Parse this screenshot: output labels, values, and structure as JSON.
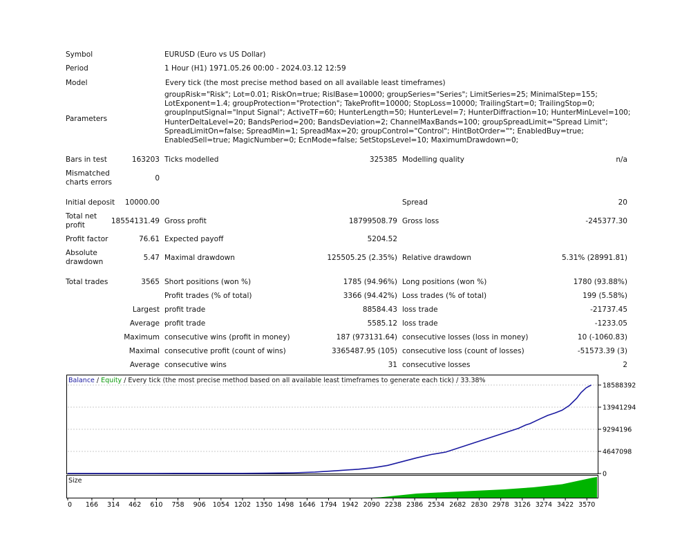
{
  "report": {
    "symbol_label": "Symbol",
    "symbol_value": "EURUSD (Euro vs US Dollar)",
    "period_label": "Period",
    "period_value": "1 Hour (H1) 1971.05.26 00:00 - 2024.03.12 12:59",
    "model_label": "Model",
    "model_value": "Every tick (the most precise method based on all available least timeframes)",
    "parameters_label": "Parameters",
    "parameters_value": "groupRisk=\"Risk\"; Lot=0.01; RiskOn=true; RislBase=10000; groupSeries=\"Series\"; LimitSeries=25; MinimalStep=155; LotExponent=1.4; groupProtection=\"Protection\"; TakeProfit=10000; StopLoss=10000; TrailingStart=0; TrailingStop=0; groupInputSignal=\"Input Signal\"; ActiveTF=60; HunterLength=50; HunterLevel=7; HunterDiffraction=10; HunterMinLevel=100; HunterDeltaLevel=20; BandsPeriod=200; BandsDeviation=2; ChannelMaxBands=100; groupSpreadLimit=\"Spread Limit\"; SpreadLimitOn=false; SpreadMin=1; SpreadMax=20; groupControl=\"Control\"; HintBotOrder=\"\"; EnabledBuy=true; EnabledSell=true; MagicNumber=0; EcnMode=false; SetStopsLevel=10; MaximumDrawdown=0;"
  },
  "stats": {
    "bars_label": "Bars in test",
    "bars_value": "163203",
    "ticks_label": "Ticks modelled",
    "ticks_value": "325385",
    "quality_label": "Modelling quality",
    "quality_value": "n/a",
    "mismatch_label": "Mismatched charts errors",
    "mismatch_value": "0",
    "deposit_label": "Initial deposit",
    "deposit_value": "10000.00",
    "spread_label": "Spread",
    "spread_value": "20",
    "netprofit_label": "Total net profit",
    "netprofit_value": "18554131.49",
    "grossprofit_label": "Gross profit",
    "grossprofit_value": "18799508.79",
    "grossloss_label": "Gross loss",
    "grossloss_value": "-245377.30",
    "pf_label": "Profit factor",
    "pf_value": "76.61",
    "payoff_label": "Expected payoff",
    "payoff_value": "5204.52",
    "absdd_label": "Absolute drawdown",
    "absdd_value": "5.47",
    "maxdd_label": "Maximal drawdown",
    "maxdd_value": "125505.25 (2.35%)",
    "reldd_label": "Relative drawdown",
    "reldd_value": "5.31% (28991.81)",
    "trades_label": "Total trades",
    "trades_value": "3565",
    "short_label": "Short positions (won %)",
    "short_value": "1785 (94.96%)",
    "long_label": "Long positions (won %)",
    "long_value": "1780 (93.88%)",
    "ptrades_label": "Profit trades (% of total)",
    "ptrades_value": "3366 (94.42%)",
    "ltrades_label": "Loss trades (% of total)",
    "ltrades_value": "199 (5.58%)",
    "largest_label": "Largest",
    "largest_profit_label": "profit trade",
    "largest_profit_value": "88584.43",
    "largest_loss_label": "loss trade",
    "largest_loss_value": "-21737.45",
    "average_label": "Average",
    "average_profit_label": "profit trade",
    "average_profit_value": "5585.12",
    "average_loss_label": "loss trade",
    "average_loss_value": "-1233.05",
    "maximum_label": "Maximum",
    "max_wins_label": "consecutive wins (profit in money)",
    "max_wins_value": "187 (973131.64)",
    "max_losses_label": "consecutive losses (loss in money)",
    "max_losses_value": "10 (-1060.83)",
    "maximal_label": "Maximal",
    "maximal_profit_label": "consecutive profit (count of wins)",
    "maximal_profit_value": "3365487.95 (105)",
    "maximal_loss_label": "consecutive loss (count of losses)",
    "maximal_loss_value": "-51573.39 (3)",
    "average2_label": "Average",
    "avg_wins_label": "consecutive wins",
    "avg_wins_value": "31",
    "avg_losses_label": "consecutive losses",
    "avg_losses_value": "2"
  },
  "chart_legend": {
    "balance": "Balance",
    "sep1": " / ",
    "equity": "Equity",
    "rest": " / Every tick (the most precise method based on all available least timeframes to generate each tick) / 33.38%",
    "size_label": "Size"
  },
  "colors": {
    "balance": "#1a1aa0",
    "equity": "#0b9a0b",
    "size_fill": "#00b400"
  },
  "chart_data": {
    "type": "line",
    "title": "",
    "xlabel": "",
    "ylabel": "",
    "x_ticks": [
      0,
      166,
      314,
      462,
      610,
      758,
      906,
      1054,
      1202,
      1350,
      1498,
      1646,
      1794,
      1942,
      2090,
      2238,
      2386,
      2534,
      2682,
      2830,
      2978,
      3126,
      3274,
      3422,
      3570
    ],
    "y_ticks": [
      18588392,
      13941294,
      9294196,
      4647098,
      0
    ],
    "xlim": [
      0,
      3640
    ],
    "ylim": [
      0,
      18588392
    ],
    "series": [
      {
        "name": "Balance",
        "x": [
          0,
          300,
          600,
          900,
          1200,
          1350,
          1550,
          1700,
          1850,
          2000,
          2100,
          2200,
          2300,
          2400,
          2500,
          2600,
          2700,
          2800,
          2900,
          3000,
          3100,
          3150,
          3180,
          3250,
          3300,
          3350,
          3400,
          3450,
          3500,
          3530,
          3565,
          3600
        ],
        "y": [
          10000,
          15000,
          20000,
          25000,
          30000,
          60000,
          150000,
          300000,
          600000,
          900000,
          1200000,
          1700000,
          2500000,
          3300000,
          4000000,
          4500000,
          5500000,
          6500000,
          7500000,
          8500000,
          9500000,
          10200000,
          10500000,
          11500000,
          12200000,
          12700000,
          13300000,
          14300000,
          15800000,
          17000000,
          18000000,
          18588392
        ]
      }
    ],
    "size_series": {
      "name": "Size",
      "x": [
        0,
        2090,
        2150,
        2400,
        2700,
        3000,
        3200,
        3400,
        3500,
        3600,
        3640
      ],
      "y": [
        0,
        0,
        0.02,
        0.2,
        0.3,
        0.4,
        0.5,
        0.65,
        0.8,
        0.95,
        1.0
      ]
    }
  }
}
